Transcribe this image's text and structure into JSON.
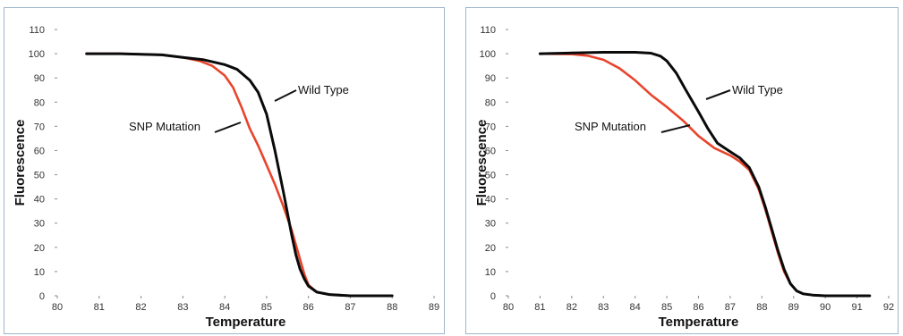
{
  "colors": {
    "wild_type": "#0a0a0a",
    "snp_mutation": "#e8452c",
    "frame": "#9fb6cc"
  },
  "chart_data": [
    {
      "type": "line",
      "xlabel": "Temperature",
      "ylabel": "Fluorescence",
      "xlim": [
        80,
        89
      ],
      "ylim": [
        0,
        110
      ],
      "x_ticks": [
        "80",
        "81",
        "82",
        "83",
        "84",
        "85",
        "86",
        "87",
        "88",
        "89"
      ],
      "y_ticks": [
        "0",
        "10",
        "20",
        "30",
        "40",
        "50",
        "60",
        "70",
        "80",
        "90",
        "100",
        "110"
      ],
      "grid": false,
      "series": [
        {
          "name": "Wild Type",
          "x": [
            80.7,
            81.5,
            82.5,
            83.0,
            83.5,
            84.0,
            84.3,
            84.6,
            84.8,
            85.0,
            85.2,
            85.4,
            85.5,
            85.6,
            85.7,
            85.8,
            85.9,
            86.0,
            86.2,
            86.5,
            87.0,
            88.0
          ],
          "y": [
            100,
            100,
            99.5,
            98.5,
            97.5,
            95.5,
            93.5,
            89,
            84,
            75,
            60,
            43,
            34,
            25,
            17,
            11,
            7,
            4,
            1.5,
            0.5,
            0,
            0
          ]
        },
        {
          "name": "SNP Mutation",
          "x": [
            80.7,
            81.5,
            82.5,
            83.0,
            83.4,
            83.7,
            84.0,
            84.2,
            84.4,
            84.6,
            84.8,
            85.0,
            85.2,
            85.4,
            85.6,
            85.8,
            85.9,
            86.0,
            86.2,
            86.5,
            87.0,
            88.0
          ],
          "y": [
            100,
            100,
            99.5,
            98.5,
            97,
            95,
            91,
            86,
            78,
            69,
            62,
            54,
            46,
            37,
            27,
            15,
            9,
            4.5,
            1.5,
            0.5,
            0,
            0
          ]
        }
      ],
      "annotations": [
        {
          "text": "Wild Type",
          "target_series": "Wild Type"
        },
        {
          "text": "SNP Mutation",
          "target_series": "SNP Mutation"
        }
      ]
    },
    {
      "type": "line",
      "xlabel": "Temperature",
      "ylabel": "Fluorescence",
      "xlim": [
        80,
        92
      ],
      "ylim": [
        0,
        110
      ],
      "x_ticks": [
        "80",
        "81",
        "82",
        "83",
        "84",
        "85",
        "86",
        "87",
        "88",
        "89",
        "90",
        "91",
        "92"
      ],
      "y_ticks": [
        "0",
        "10",
        "20",
        "30",
        "40",
        "50",
        "60",
        "70",
        "80",
        "90",
        "100",
        "110"
      ],
      "grid": false,
      "series": [
        {
          "name": "Wild Type",
          "x": [
            81.0,
            82.0,
            83.0,
            84.0,
            84.5,
            84.8,
            85.0,
            85.3,
            85.6,
            86.0,
            86.3,
            86.6,
            87.0,
            87.3,
            87.6,
            87.9,
            88.1,
            88.3,
            88.5,
            88.7,
            88.9,
            89.1,
            89.3,
            89.6,
            90.0,
            91.0,
            91.4
          ],
          "y": [
            100,
            100.3,
            100.6,
            100.6,
            100.2,
            99,
            97,
            92,
            85,
            76,
            69,
            63,
            59.5,
            57,
            53,
            45,
            37,
            28,
            19,
            11,
            5,
            2,
            0.8,
            0.3,
            0,
            0,
            0
          ]
        },
        {
          "name": "SNP Mutation",
          "x": [
            81.0,
            82.0,
            82.5,
            83.0,
            83.5,
            84.0,
            84.5,
            85.0,
            85.5,
            86.0,
            86.5,
            87.0,
            87.3,
            87.6,
            87.9,
            88.1,
            88.3,
            88.5,
            88.7,
            88.9,
            89.1,
            89.3,
            89.6,
            90.0,
            91.0
          ],
          "y": [
            100,
            99.8,
            99.2,
            97.5,
            94,
            89,
            83,
            78,
            72.5,
            66,
            61,
            58,
            55.5,
            52,
            44,
            36,
            27,
            18,
            10,
            5,
            2,
            0.8,
            0.3,
            0,
            0
          ]
        }
      ],
      "annotations": [
        {
          "text": "Wild Type",
          "target_series": "Wild Type"
        },
        {
          "text": "SNP Mutation",
          "target_series": "SNP Mutation"
        }
      ]
    }
  ]
}
